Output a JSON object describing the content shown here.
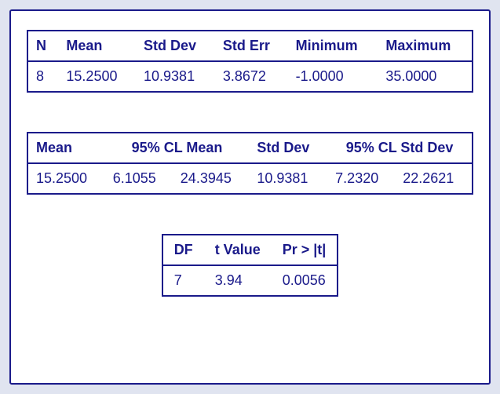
{
  "table1": {
    "type": "table",
    "border_color": "#1a1a8a",
    "text_color": "#1a1a8a",
    "background_color": "#ffffff",
    "header_fontsize": 18,
    "cell_fontsize": 18,
    "columns": [
      "N",
      "Mean",
      "Std Dev",
      "Std Err",
      "Minimum",
      "Maximum"
    ],
    "rows": [
      [
        "8",
        "15.2500",
        "10.9381",
        "3.8672",
        "-1.0000",
        "35.0000"
      ]
    ]
  },
  "table2": {
    "type": "table",
    "border_color": "#1a1a8a",
    "text_color": "#1a1a8a",
    "background_color": "#ffffff",
    "header_fontsize": 18,
    "cell_fontsize": 18,
    "columns": [
      "Mean",
      "95% CL Mean",
      "",
      "Std Dev",
      "95% CL Std Dev",
      ""
    ],
    "display_columns": [
      {
        "label": "Mean",
        "colspan": 1
      },
      {
        "label": "95% CL Mean",
        "colspan": 2
      },
      {
        "label": "Std Dev",
        "colspan": 1
      },
      {
        "label": "95% CL Std Dev",
        "colspan": 2
      }
    ],
    "rows": [
      [
        "15.2500",
        "6.1055",
        "24.3945",
        "10.9381",
        "7.2320",
        "22.2621"
      ]
    ]
  },
  "table3": {
    "type": "table",
    "border_color": "#1a1a8a",
    "text_color": "#1a1a8a",
    "background_color": "#ffffff",
    "header_fontsize": 18,
    "cell_fontsize": 18,
    "columns": [
      "DF",
      "t Value",
      "Pr > |t|"
    ],
    "rows": [
      [
        "7",
        "3.94",
        "0.0056"
      ]
    ]
  },
  "page": {
    "background_color": "#e0e4f0",
    "container_border_color": "#1a1a8a",
    "container_background": "#ffffff"
  }
}
